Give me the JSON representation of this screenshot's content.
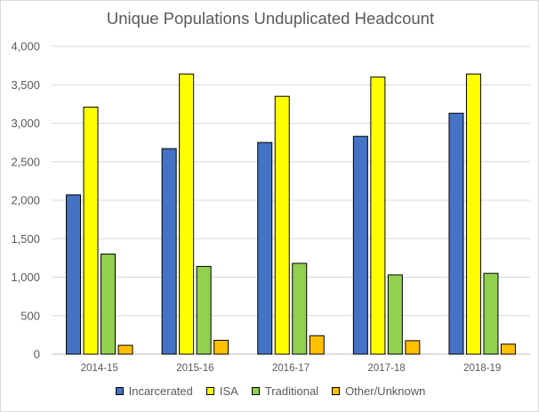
{
  "chart_data": {
    "type": "bar",
    "title": "Unique Populations Unduplicated Headcount",
    "xlabel": "",
    "ylabel": "",
    "categories": [
      "2014-15",
      "2015-16",
      "2016-17",
      "2017-18",
      "2018-19"
    ],
    "series": [
      {
        "name": "Incarcerated",
        "color": "#4472c4",
        "values": [
          2070,
          2670,
          2750,
          2830,
          3130
        ]
      },
      {
        "name": "ISA",
        "color": "#ffff00",
        "values": [
          3210,
          3640,
          3350,
          3600,
          3640
        ]
      },
      {
        "name": "Traditional",
        "color": "#92d050",
        "values": [
          1300,
          1140,
          1180,
          1030,
          1050
        ]
      },
      {
        "name": "Other/Unknown",
        "color": "#ffc000",
        "values": [
          115,
          180,
          240,
          175,
          130
        ]
      }
    ],
    "ylim": [
      0,
      4000
    ],
    "yticks": [
      "0",
      "500",
      "1,000",
      "1,500",
      "2,000",
      "2,500",
      "3,000",
      "3,500",
      "4,000"
    ],
    "ytick_values": [
      0,
      500,
      1000,
      1500,
      2000,
      2500,
      3000,
      3500,
      4000
    ],
    "grid": true,
    "legend_position": "bottom"
  }
}
